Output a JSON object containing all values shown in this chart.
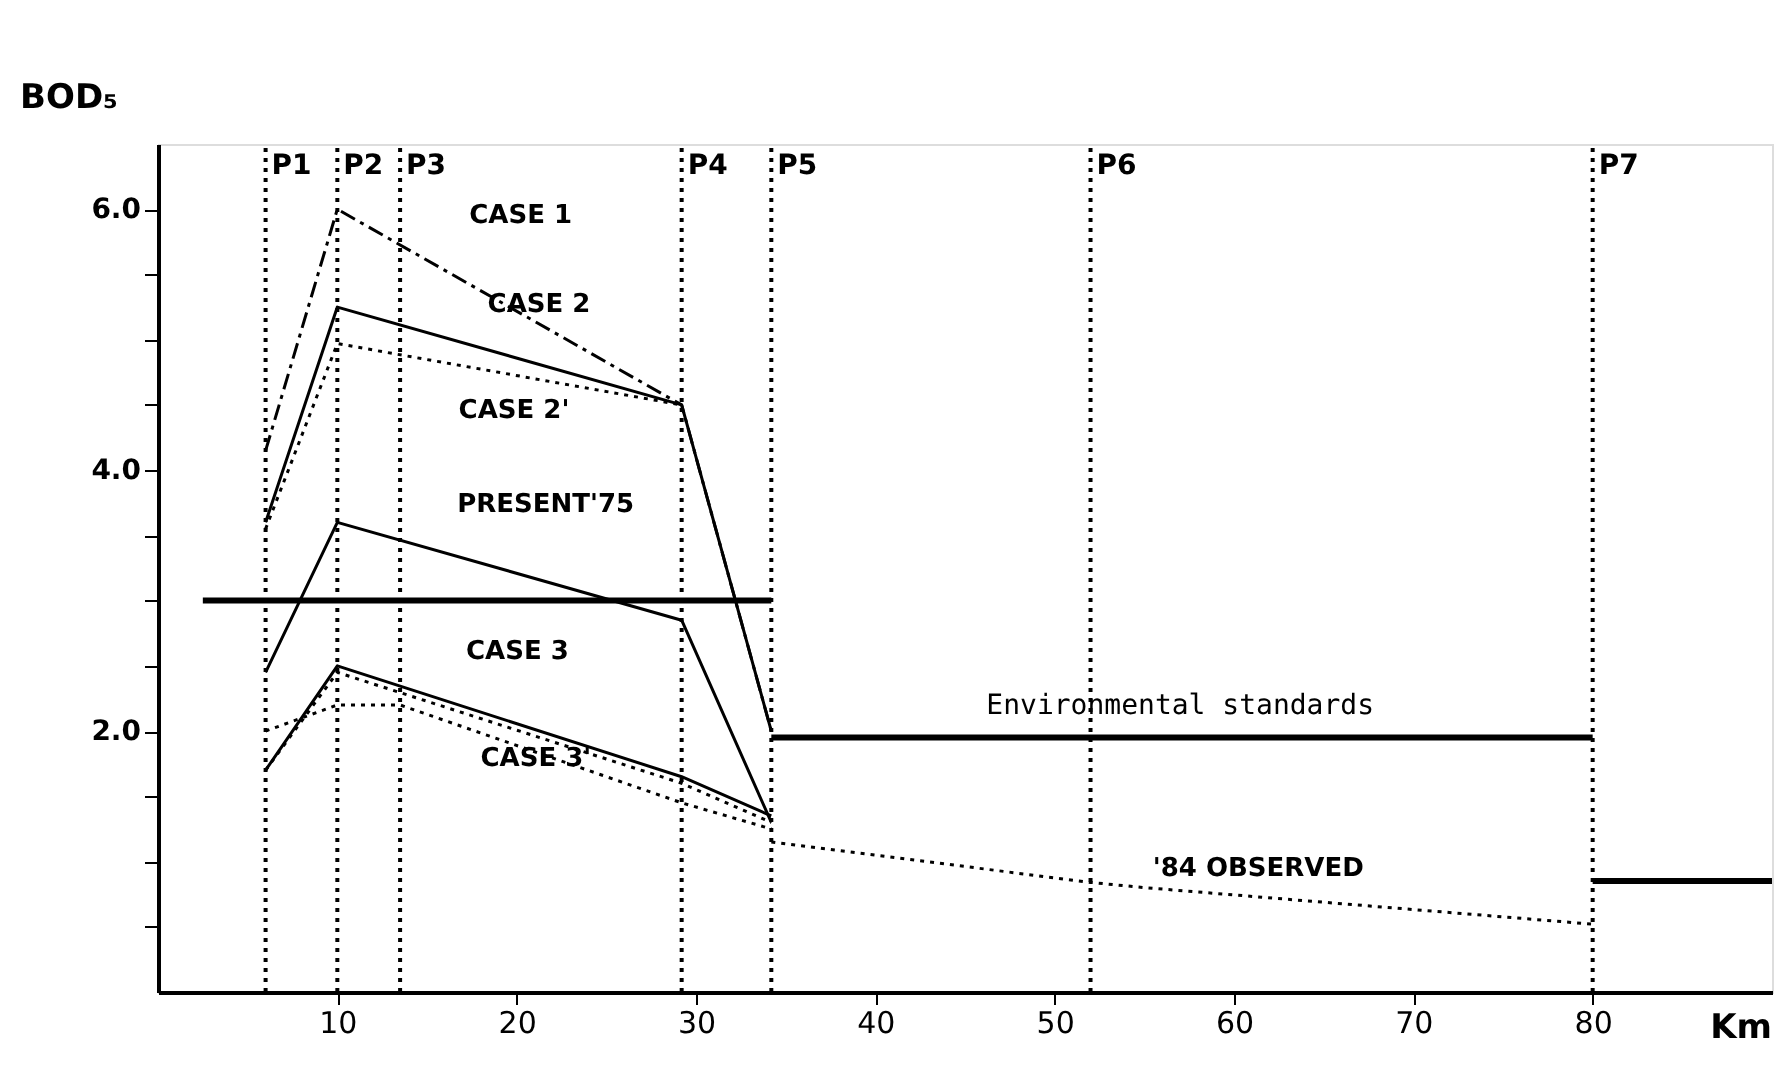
{
  "chart_data": {
    "type": "line",
    "ylabel": "BOD₅",
    "xlabel": "Km",
    "xlim": [
      0,
      90
    ],
    "xticks": [
      10,
      20,
      30,
      40,
      50,
      60,
      70,
      80
    ],
    "ylim": [
      0,
      6.5
    ],
    "yticks": [
      {
        "value": 0.5,
        "label": null
      },
      {
        "value": 1.0,
        "label": null
      },
      {
        "value": 1.5,
        "label": null
      },
      {
        "value": 2.0,
        "label": "2.0"
      },
      {
        "value": 2.5,
        "label": null
      },
      {
        "value": 3.0,
        "label": null
      },
      {
        "value": 3.5,
        "label": null
      },
      {
        "value": 4.0,
        "label": "4.0"
      },
      {
        "value": 4.5,
        "label": null
      },
      {
        "value": 5.0,
        "label": null
      },
      {
        "value": 5.5,
        "label": null
      },
      {
        "value": 6.0,
        "label": "6.0"
      }
    ],
    "grid": false,
    "marker": "none",
    "series": [
      {
        "color": "#000000",
        "line_style": "dashed",
        "x": [
          6.0,
          10.0,
          29.2,
          34.2
        ],
        "values": [
          4.15,
          6.0,
          4.5,
          2.0
        ]
      },
      {
        "color": "#000000",
        "line_style": "solid",
        "x": [
          6.0,
          10.0,
          29.2,
          34.2
        ],
        "values": [
          3.6,
          5.25,
          4.5,
          2.0
        ]
      },
      {
        "color": "#000000",
        "line_style": "dotted",
        "x": [
          6.0,
          10.0,
          29.2
        ],
        "values": [
          3.55,
          4.97,
          4.5
        ]
      },
      {
        "color": "#000000",
        "line_style": "solid",
        "x": [
          6.0,
          10.0,
          29.2,
          34.2
        ],
        "values": [
          2.45,
          3.6,
          2.85,
          1.3
        ]
      },
      {
        "color": "#000000",
        "line_style": "solid",
        "x": [
          6.0,
          10.0,
          29.2,
          34.2
        ],
        "values": [
          1.7,
          2.5,
          1.65,
          1.35
        ]
      },
      {
        "color": "#000000",
        "line_style": "dotted",
        "x": [
          6.0,
          10.0,
          29.2,
          34.2
        ],
        "values": [
          1.7,
          2.45,
          1.6,
          1.3
        ]
      },
      {
        "color": "#000000",
        "line_style": "dotted",
        "x": [
          6.0,
          10.0,
          13.5,
          29.2,
          34.2
        ],
        "values": [
          2.0,
          2.2,
          2.2,
          1.45,
          1.25
        ]
      },
      {
        "color": "#000000",
        "line_style": "dotted",
        "x": [
          34.2,
          52.0,
          55.0,
          80.0
        ],
        "values": [
          1.15,
          0.84,
          0.8,
          0.52
        ]
      },
      {
        "color": "#000000",
        "line_style": "solid",
        "x": [
          2.5,
          34.2
        ],
        "values": [
          3.0,
          3.0
        ]
      },
      {
        "color": "#000000",
        "line_style": "solid",
        "x": [
          34.2,
          80.0
        ],
        "values": [
          1.95,
          1.95
        ]
      },
      {
        "color": "#000000",
        "line_style": "solid",
        "x": [
          80.0,
          90.0
        ],
        "values": [
          0.85,
          0.85
        ]
      }
    ],
    "ref_lines": [
      {
        "axis": "x",
        "value": 6.0,
        "label": "P1",
        "line_style": "dotted",
        "color": "#000000"
      },
      {
        "axis": "x",
        "value": 10.0,
        "label": "P2",
        "line_style": "dotted",
        "color": "#000000"
      },
      {
        "axis": "x",
        "value": 13.5,
        "label": "P3",
        "line_style": "dotted",
        "color": "#000000"
      },
      {
        "axis": "x",
        "value": 29.2,
        "label": "P4",
        "line_style": "dotted",
        "color": "#000000"
      },
      {
        "axis": "x",
        "value": 34.2,
        "label": "P5",
        "line_style": "dotted",
        "color": "#000000"
      },
      {
        "axis": "x",
        "value": 52.0,
        "label": "P6",
        "line_style": "dotted",
        "color": "#000000"
      },
      {
        "axis": "x",
        "value": 80.0,
        "label": "P7",
        "line_style": "dotted",
        "color": "#000000"
      }
    ],
    "annotations": [
      {
        "text": "CASE 1",
        "x": 14.9,
        "y": 5.62
      },
      {
        "text": "CASE 2",
        "x": 15.7,
        "y": 5.03
      },
      {
        "text": "CASE 2'",
        "x": 15.2,
        "y": 4.8
      },
      {
        "text": "PRESENT'75",
        "x": 14.9,
        "y": 3.4
      },
      {
        "text": "CASE 3",
        "x": 14.5,
        "y": 2.31
      },
      {
        "text": "CASE 3'",
        "x": 16.2,
        "y": 2.13
      },
      {
        "text": "'84 OBSERVED",
        "x": 54.8,
        "y": 0.8
      },
      {
        "text": "Environmental standards",
        "x": 57.0,
        "y": 1.95
      }
    ]
  }
}
